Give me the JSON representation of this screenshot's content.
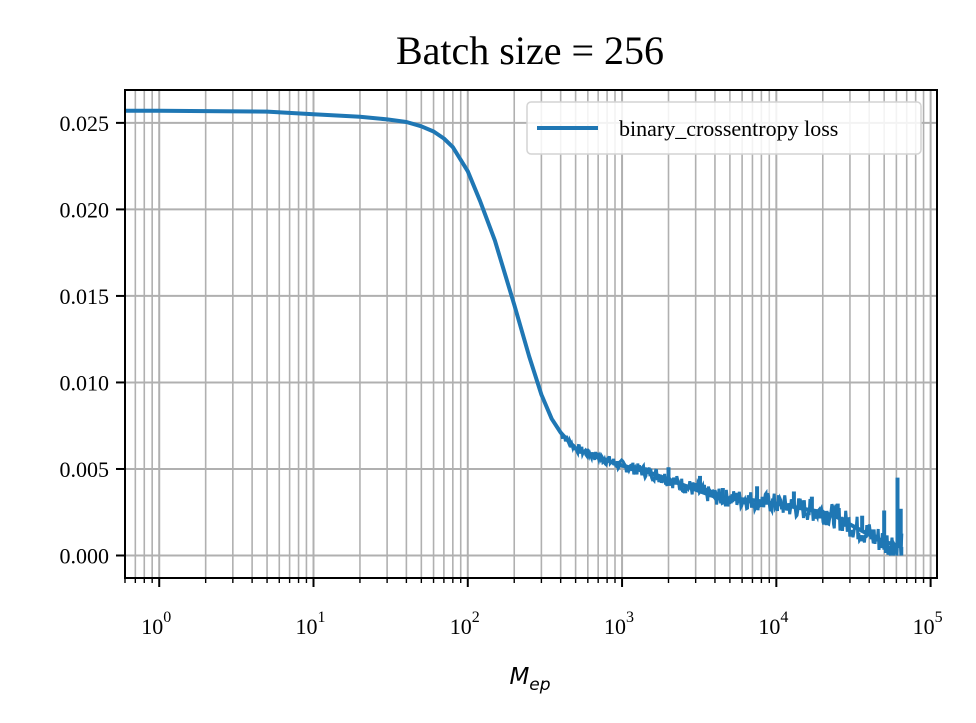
{
  "chart_data": {
    "type": "line",
    "title": "Batch size = 256",
    "xlabel_base": "M",
    "xlabel_sub": "ep",
    "ylabel": "",
    "x_scale": "log",
    "xlim": [
      0.6,
      110000
    ],
    "ylim": [
      -0.0013,
      0.0269
    ],
    "grid": true,
    "grid_minor_x": true,
    "legend_position": "top-right",
    "x_ticks": [
      {
        "base": "10",
        "exp": "0",
        "value": 1
      },
      {
        "base": "10",
        "exp": "1",
        "value": 10
      },
      {
        "base": "10",
        "exp": "2",
        "value": 100
      },
      {
        "base": "10",
        "exp": "3",
        "value": 1000
      },
      {
        "base": "10",
        "exp": "4",
        "value": 10000
      },
      {
        "base": "10",
        "exp": "5",
        "value": 100000
      }
    ],
    "y_ticks": [
      {
        "label": "0.000",
        "value": 0.0
      },
      {
        "label": "0.005",
        "value": 0.005
      },
      {
        "label": "0.010",
        "value": 0.01
      },
      {
        "label": "0.015",
        "value": 0.015
      },
      {
        "label": "0.020",
        "value": 0.02
      },
      {
        "label": "0.025",
        "value": 0.025
      }
    ],
    "series": [
      {
        "name": "binary_crossentropy loss",
        "color": "#1f77b4",
        "noise_start_x": 400,
        "x": [
          0.6,
          1,
          2,
          5,
          10,
          20,
          30,
          40,
          50,
          60,
          70,
          80,
          100,
          120,
          150,
          200,
          250,
          300,
          350,
          400,
          450,
          500,
          600,
          700,
          800,
          1000,
          1500,
          2000,
          3000,
          4000,
          5000,
          7000,
          10000,
          15000,
          20000,
          25000,
          30000,
          40000,
          50000,
          60000,
          65000
        ],
        "y": [
          0.0257,
          0.0257,
          0.02568,
          0.02565,
          0.0255,
          0.02535,
          0.0252,
          0.02505,
          0.0248,
          0.0245,
          0.0241,
          0.0236,
          0.0222,
          0.0205,
          0.0182,
          0.0145,
          0.0115,
          0.0093,
          0.0079,
          0.0071,
          0.0066,
          0.0062,
          0.0059,
          0.0057,
          0.0055,
          0.0052,
          0.0048,
          0.0044,
          0.0038,
          0.0034,
          0.0033,
          0.0032,
          0.003,
          0.0027,
          0.0025,
          0.0022,
          0.0018,
          0.0012,
          0.0008,
          0.0006,
          0.0005
        ],
        "spikes": [
          {
            "x": 1200,
            "y": 0.0052
          },
          {
            "x": 2000,
            "y": 0.0051
          },
          {
            "x": 3200,
            "y": 0.0046
          },
          {
            "x": 4500,
            "y": 0.0039
          },
          {
            "x": 7500,
            "y": 0.004
          },
          {
            "x": 13000,
            "y": 0.0037
          },
          {
            "x": 17000,
            "y": 0.0034
          },
          {
            "x": 25000,
            "y": 0.003
          },
          {
            "x": 36000,
            "y": 0.0023
          },
          {
            "x": 50000,
            "y": 0.0026
          },
          {
            "x": 61000,
            "y": 0.0045
          },
          {
            "x": 64000,
            "y": 0.0027
          }
        ]
      }
    ]
  }
}
